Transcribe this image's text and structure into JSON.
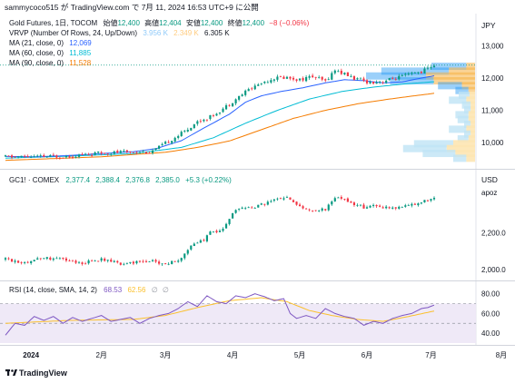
{
  "header": {
    "attribution": "sammycoco515 が TradingView.com で 7月 11, 2024 16:53 UTC+9 に公開"
  },
  "footer": {
    "brand": "TradingView",
    "logo_icon": "tradingview-logo-icon"
  },
  "colors": {
    "up": "#089981",
    "down": "#f23645",
    "ma21": "#2962ff",
    "ma60": "#00bcd4",
    "ma90": "#f57c00",
    "rsi": "#7e57c2",
    "rsi_ma": "#fbc02d",
    "rsi_band": "#ede7f6",
    "vrvp_up": "#bfe3f5",
    "vrvp_down": "#fde6b3",
    "vrvp_va_up": "#2196f3",
    "vrvp_va_down": "#f5b041"
  },
  "chart_data": [
    {
      "type": "candlestick",
      "id": "gold-futures-tocom",
      "title": "Gold Futures, 1日, TOCOM",
      "ohlc_labels": {
        "open": "始値",
        "high": "高値",
        "low": "安値",
        "close": "終値"
      },
      "ohlc": {
        "open": "12,400",
        "high": "12,404",
        "low": "12,400",
        "close": "12,400",
        "change": "−8 (−0.06%)"
      },
      "unit_label": "JPY",
      "y_ticks": [
        "13,000",
        "12,000",
        "11,000",
        "10,000"
      ],
      "y_tick_values": [
        13000,
        12000,
        11000,
        10000
      ],
      "ylim": [
        9300,
        13350
      ],
      "last_price": 12400,
      "indicators": [
        {
          "label": "VRVP (Number Of Rows, 24, Up/Down)",
          "values": [
            "3.956 K",
            "2.349 K",
            "6.305 K"
          ]
        },
        {
          "label": "MA (21, close, 0)",
          "value": "12,069",
          "color_key": "ma21"
        },
        {
          "label": "MA (60, close, 0)",
          "value": "11,885",
          "color_key": "ma60"
        },
        {
          "label": "MA (90, close, 0)",
          "value": "11,528",
          "color_key": "ma90"
        }
      ],
      "ma21": [
        [
          0,
          9570
        ],
        [
          10,
          9560
        ],
        [
          20,
          9600
        ],
        [
          30,
          9660
        ],
        [
          40,
          9720
        ],
        [
          47,
          9810
        ],
        [
          55,
          10060
        ],
        [
          62,
          10450
        ],
        [
          70,
          10880
        ],
        [
          75,
          11250
        ],
        [
          80,
          11450
        ],
        [
          86,
          11580
        ],
        [
          93,
          11700
        ],
        [
          100,
          11850
        ],
        [
          106,
          11950
        ],
        [
          112,
          11920
        ],
        [
          118,
          11850
        ],
        [
          124,
          11880
        ],
        [
          130,
          12000
        ],
        [
          134,
          12069
        ]
      ],
      "ma60": [
        [
          0,
          9520
        ],
        [
          20,
          9580
        ],
        [
          40,
          9660
        ],
        [
          55,
          9850
        ],
        [
          65,
          10150
        ],
        [
          75,
          10600
        ],
        [
          85,
          11000
        ],
        [
          95,
          11350
        ],
        [
          105,
          11580
        ],
        [
          115,
          11720
        ],
        [
          125,
          11820
        ],
        [
          134,
          11885
        ]
      ],
      "ma90": [
        [
          0,
          9450
        ],
        [
          30,
          9560
        ],
        [
          50,
          9700
        ],
        [
          60,
          9850
        ],
        [
          70,
          10050
        ],
        [
          80,
          10400
        ],
        [
          90,
          10750
        ],
        [
          100,
          11000
        ],
        [
          110,
          11200
        ],
        [
          120,
          11350
        ],
        [
          134,
          11528
        ]
      ],
      "vrvp_rows": [
        {
          "price": 12350,
          "up": 0.32,
          "down": 0.08,
          "va": true
        },
        {
          "price": 12200,
          "up": 0.62,
          "down": 0.24,
          "va": true
        },
        {
          "price": 12050,
          "up": 0.55,
          "down": 0.45,
          "va": true
        },
        {
          "price": 11900,
          "up": 0.4,
          "down": 0.38,
          "va": true
        },
        {
          "price": 11750,
          "up": 0.22,
          "down": 0.12,
          "va": true
        },
        {
          "price": 11600,
          "up": 0.12,
          "down": 0.06,
          "va": true
        },
        {
          "price": 11450,
          "up": 0.1,
          "down": 0.05,
          "va": false
        },
        {
          "price": 11300,
          "up": 0.16,
          "down": 0.08,
          "va": false
        },
        {
          "price": 11150,
          "up": 0.08,
          "down": 0.04,
          "va": false
        },
        {
          "price": 11000,
          "up": 0.06,
          "down": 0.04,
          "va": false
        },
        {
          "price": 10850,
          "up": 0.12,
          "down": 0.06,
          "va": false
        },
        {
          "price": 10700,
          "up": 0.1,
          "down": 0.06,
          "va": false
        },
        {
          "price": 10550,
          "up": 0.06,
          "down": 0.04,
          "va": false
        },
        {
          "price": 10400,
          "up": 0.16,
          "down": 0.08,
          "va": false
        },
        {
          "price": 10250,
          "up": 0.06,
          "down": 0.04,
          "va": false
        },
        {
          "price": 10100,
          "up": 0.1,
          "down": 0.06,
          "va": false
        },
        {
          "price": 9950,
          "up": 0.36,
          "down": 0.2,
          "va": false
        },
        {
          "price": 9800,
          "up": 0.4,
          "down": 0.26,
          "va": false
        },
        {
          "price": 9650,
          "up": 0.3,
          "down": 0.18,
          "va": false
        },
        {
          "price": 9500,
          "up": 0.12,
          "down": 0.08,
          "va": false
        }
      ],
      "anchors": [
        [
          0,
          9560
        ],
        [
          10,
          9560
        ],
        [
          20,
          9580
        ],
        [
          30,
          9680
        ],
        [
          40,
          9720
        ],
        [
          45,
          9700
        ],
        [
          48,
          9850
        ],
        [
          52,
          10100
        ],
        [
          56,
          10350
        ],
        [
          60,
          10650
        ],
        [
          64,
          10800
        ],
        [
          68,
          11050
        ],
        [
          72,
          11350
        ],
        [
          76,
          11650
        ],
        [
          80,
          11850
        ],
        [
          84,
          12000
        ],
        [
          88,
          12020
        ],
        [
          92,
          11950
        ],
        [
          96,
          12050
        ],
        [
          100,
          11900
        ],
        [
          103,
          12250
        ],
        [
          106,
          12120
        ],
        [
          110,
          11950
        ],
        [
          114,
          11870
        ],
        [
          118,
          11900
        ],
        [
          122,
          12000
        ],
        [
          126,
          12100
        ],
        [
          130,
          12200
        ],
        [
          134,
          12400
        ]
      ]
    },
    {
      "type": "candlestick",
      "id": "gc1-comex",
      "title": "GC1! · COMEX",
      "ohlc": {
        "open": "2,377.4",
        "high": "2,388.4",
        "low": "2,376.8",
        "close": "2,385.0",
        "change": "+5.3 (+0.22%)"
      },
      "unit_label": "USD",
      "unit_sublabel": "apoz",
      "y_ticks": [
        "2,200.0",
        "2,000.0"
      ],
      "y_tick_values": [
        2200,
        2000
      ],
      "ylim": [
        1960,
        2440
      ],
      "last_price": 2385,
      "anchors": [
        [
          0,
          2055
        ],
        [
          6,
          2040
        ],
        [
          12,
          2065
        ],
        [
          18,
          2055
        ],
        [
          24,
          2035
        ],
        [
          30,
          2055
        ],
        [
          36,
          2030
        ],
        [
          40,
          2040
        ],
        [
          46,
          2045
        ],
        [
          50,
          2030
        ],
        [
          54,
          2050
        ],
        [
          58,
          2130
        ],
        [
          62,
          2160
        ],
        [
          64,
          2200
        ],
        [
          68,
          2220
        ],
        [
          72,
          2330
        ],
        [
          78,
          2340
        ],
        [
          84,
          2380
        ],
        [
          88,
          2390
        ],
        [
          92,
          2340
        ],
        [
          96,
          2320
        ],
        [
          100,
          2330
        ],
        [
          104,
          2400
        ],
        [
          108,
          2360
        ],
        [
          112,
          2340
        ],
        [
          116,
          2350
        ],
        [
          120,
          2330
        ],
        [
          126,
          2350
        ],
        [
          130,
          2370
        ],
        [
          134,
          2385
        ]
      ]
    },
    {
      "type": "line",
      "id": "rsi",
      "title": "RSI (14, close, SMA, 14, 2)",
      "values": [
        "68.53",
        "62.56",
        "∅",
        "∅"
      ],
      "y_ticks": [
        "80.00",
        "60.00",
        "40.00"
      ],
      "y_tick_values": [
        80,
        60,
        40
      ],
      "ylim": [
        30,
        88
      ],
      "band": [
        70,
        30
      ],
      "midline": 50,
      "rsi": [
        [
          0,
          38
        ],
        [
          3,
          50
        ],
        [
          6,
          48
        ],
        [
          9,
          57
        ],
        [
          12,
          53
        ],
        [
          15,
          57
        ],
        [
          18,
          50
        ],
        [
          21,
          56
        ],
        [
          24,
          52
        ],
        [
          27,
          55
        ],
        [
          30,
          58
        ],
        [
          33,
          52
        ],
        [
          36,
          54
        ],
        [
          39,
          56
        ],
        [
          42,
          50
        ],
        [
          45,
          55
        ],
        [
          48,
          58
        ],
        [
          51,
          60
        ],
        [
          54,
          65
        ],
        [
          57,
          72
        ],
        [
          60,
          67
        ],
        [
          63,
          78
        ],
        [
          66,
          72
        ],
        [
          69,
          70
        ],
        [
          72,
          78
        ],
        [
          75,
          76
        ],
        [
          78,
          80
        ],
        [
          81,
          77
        ],
        [
          84,
          73
        ],
        [
          87,
          75
        ],
        [
          89,
          60
        ],
        [
          91,
          55
        ],
        [
          94,
          58
        ],
        [
          97,
          55
        ],
        [
          100,
          65
        ],
        [
          103,
          60
        ],
        [
          106,
          57
        ],
        [
          109,
          55
        ],
        [
          112,
          48
        ],
        [
          115,
          52
        ],
        [
          118,
          50
        ],
        [
          121,
          55
        ],
        [
          124,
          58
        ],
        [
          127,
          60
        ],
        [
          130,
          65
        ],
        [
          132,
          66
        ],
        [
          134,
          68.5
        ]
      ],
      "rsi_ma": [
        [
          0,
          50
        ],
        [
          20,
          53
        ],
        [
          40,
          54
        ],
        [
          50,
          58
        ],
        [
          60,
          66
        ],
        [
          70,
          73
        ],
        [
          80,
          76
        ],
        [
          88,
          72
        ],
        [
          95,
          63
        ],
        [
          102,
          58
        ],
        [
          110,
          54
        ],
        [
          118,
          52
        ],
        [
          126,
          57
        ],
        [
          134,
          62.5
        ]
      ]
    }
  ],
  "x_axis": {
    "n_bars": 135,
    "labels": [
      {
        "bar": 8,
        "text": "2024"
      },
      {
        "bar": 30,
        "text": "2月"
      },
      {
        "bar": 50,
        "text": "3月"
      },
      {
        "bar": 71,
        "text": "4月"
      },
      {
        "bar": 92,
        "text": "5月"
      },
      {
        "bar": 113,
        "text": "6月"
      },
      {
        "bar": 133,
        "text": "7月"
      },
      {
        "bar": 155,
        "text": "8月"
      }
    ]
  }
}
